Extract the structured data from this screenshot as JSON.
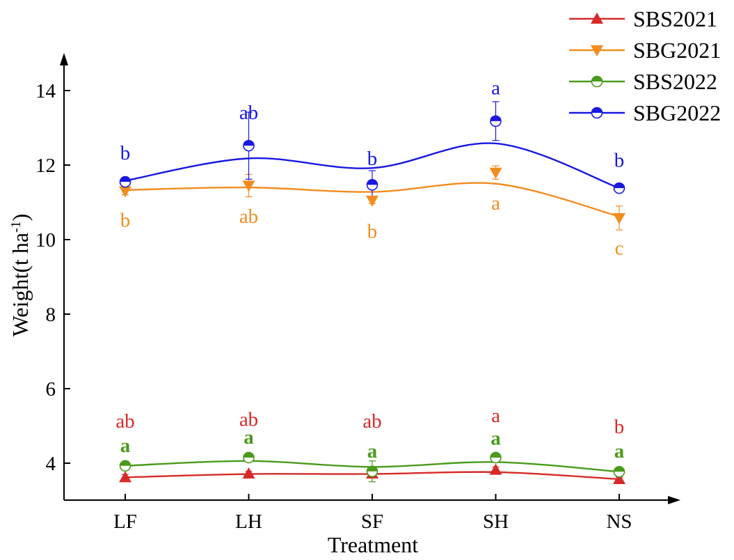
{
  "chart_data": {
    "type": "line",
    "title": "",
    "xlabel": "Treatment",
    "ylabel_main": "Weight(t ha",
    "ylabel_sup": "-1",
    "ylabel_close": ")",
    "categories": [
      "LF",
      "LH",
      "SF",
      "SH",
      "NS"
    ],
    "ylim": [
      3,
      15
    ],
    "yticks": [
      4,
      6,
      8,
      10,
      12,
      14
    ],
    "legend_position": "top-right",
    "series": [
      {
        "name": "SBS2021",
        "color": "#d62a28",
        "marker": "triangle-up",
        "values": [
          3.62,
          3.72,
          3.72,
          3.82,
          3.57
        ],
        "fit": [
          3.62,
          3.71,
          3.71,
          3.76,
          3.57
        ],
        "errors": [
          0.08,
          0.06,
          0.12,
          0.08,
          0.06
        ],
        "labels": [
          "ab",
          "ab",
          "ab",
          "a",
          "b"
        ],
        "label_y": [
          4.95,
          5.0,
          4.95,
          5.1,
          4.8
        ],
        "label_bold": false
      },
      {
        "name": "SBG2021",
        "color": "#f28c1e",
        "marker": "triangle-down",
        "values": [
          11.3,
          11.45,
          11.05,
          11.8,
          10.58
        ],
        "fit": [
          11.33,
          11.4,
          11.28,
          11.5,
          10.62
        ],
        "errors": [
          0.1,
          0.3,
          0.08,
          0.18,
          0.32
        ],
        "labels": [
          "b",
          "ab",
          "b",
          "a",
          "c"
        ],
        "label_y": [
          10.35,
          10.45,
          10.05,
          10.8,
          9.6
        ],
        "label_bold": false
      },
      {
        "name": "SBS2022",
        "color": "#4a9a1c",
        "marker": "circle-half",
        "values": [
          3.93,
          4.15,
          3.78,
          4.15,
          3.77
        ],
        "fit": [
          3.93,
          4.06,
          3.9,
          4.03,
          3.77
        ],
        "errors": [
          0.06,
          0.1,
          0.28,
          0.06,
          0.06
        ],
        "labels": [
          "a",
          "a",
          "a",
          "a",
          "a"
        ],
        "label_y": [
          4.3,
          4.52,
          4.15,
          4.5,
          4.15
        ],
        "label_bold": true
      },
      {
        "name": "SBG2022",
        "color": "#1818e0",
        "marker": "circle-half",
        "values": [
          11.55,
          12.52,
          11.47,
          13.18,
          11.38
        ],
        "fit": [
          11.58,
          12.18,
          11.92,
          12.58,
          11.38
        ],
        "errors": [
          0.08,
          0.9,
          0.38,
          0.52,
          0.1
        ],
        "labels": [
          "b",
          "ab",
          "b",
          "a",
          "b"
        ],
        "label_y": [
          12.15,
          13.23,
          12.0,
          13.9,
          11.95
        ],
        "label_bold": false
      }
    ]
  }
}
